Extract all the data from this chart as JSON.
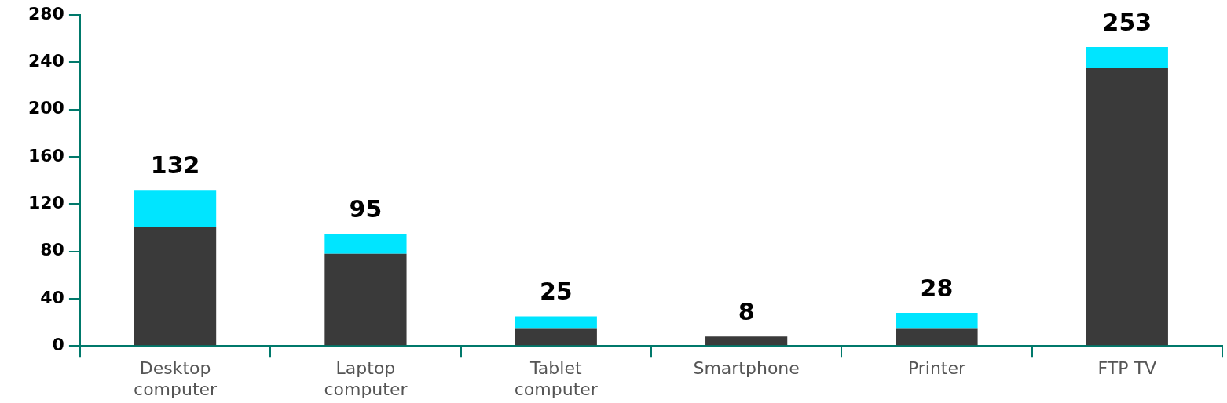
{
  "chart_data": {
    "type": "bar",
    "stacked": true,
    "categories": [
      "Desktop\ncomputer",
      "Laptop\ncomputer",
      "Tablet\ncomputer",
      "Smartphone",
      "Printer",
      "FTP TV"
    ],
    "series": [
      {
        "color": "#3a3a3a",
        "values": [
          101,
          78,
          15,
          8,
          15,
          235
        ]
      },
      {
        "color": "#00e5ff",
        "values": [
          31,
          17,
          10,
          0,
          13,
          18
        ]
      }
    ],
    "totals": [
      "132",
      "95",
      "25",
      "8",
      "28",
      "253"
    ],
    "ylim": [
      0,
      280
    ],
    "yticks": [
      0,
      40,
      80,
      120,
      160,
      200,
      240,
      280
    ],
    "grid": false,
    "legend": false
  }
}
